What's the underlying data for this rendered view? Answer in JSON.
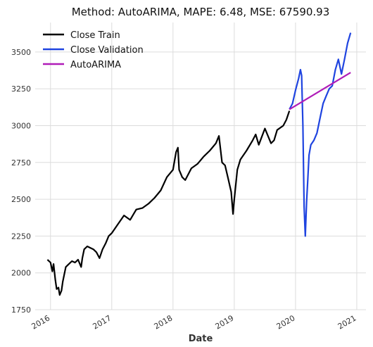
{
  "chart_data": {
    "type": "line",
    "title": "Method: AutoARIMA, MAPE: 6.48, MSE: 67590.93",
    "xlabel": "Date",
    "ylabel": "",
    "xlim": [
      2015.75,
      2021.15
    ],
    "ylim": [
      1750,
      3700
    ],
    "x_ticks": [
      2016,
      2017,
      2018,
      2019,
      2020,
      2021
    ],
    "x_tick_labels": [
      "2016",
      "2017",
      "2018",
      "2019",
      "2020",
      "2021"
    ],
    "y_ticks": [
      1750,
      2000,
      2250,
      2500,
      2750,
      3000,
      3250,
      3500
    ],
    "y_tick_labels": [
      "1750",
      "2000",
      "2250",
      "2500",
      "2750",
      "3000",
      "3250",
      "3500"
    ],
    "grid": true,
    "legend_position": "top-left",
    "series": [
      {
        "name": "Close Train",
        "color": "#000000",
        "x": [
          2015.95,
          2016.0,
          2016.03,
          2016.05,
          2016.08,
          2016.1,
          2016.13,
          2016.15,
          2016.18,
          2016.2,
          2016.25,
          2016.3,
          2016.35,
          2016.4,
          2016.45,
          2016.5,
          2016.52,
          2016.55,
          2016.6,
          2016.65,
          2016.7,
          2016.75,
          2016.8,
          2016.85,
          2016.9,
          2016.95,
          2017.0,
          2017.1,
          2017.2,
          2017.3,
          2017.4,
          2017.5,
          2017.6,
          2017.7,
          2017.8,
          2017.9,
          2018.0,
          2018.05,
          2018.08,
          2018.1,
          2018.15,
          2018.2,
          2018.3,
          2018.4,
          2018.5,
          2018.6,
          2018.7,
          2018.75,
          2018.8,
          2018.85,
          2018.9,
          2018.95,
          2018.98,
          2019.0,
          2019.05,
          2019.1,
          2019.2,
          2019.3,
          2019.35,
          2019.4,
          2019.5,
          2019.6,
          2019.65,
          2019.7,
          2019.8,
          2019.85,
          2019.9
        ],
        "y": [
          2090,
          2070,
          2010,
          2060,
          1950,
          1890,
          1900,
          1850,
          1880,
          1940,
          2040,
          2060,
          2080,
          2070,
          2090,
          2040,
          2100,
          2160,
          2180,
          2170,
          2160,
          2140,
          2100,
          2160,
          2200,
          2250,
          2270,
          2330,
          2390,
          2360,
          2430,
          2440,
          2470,
          2510,
          2560,
          2650,
          2700,
          2820,
          2850,
          2700,
          2650,
          2630,
          2710,
          2740,
          2790,
          2830,
          2880,
          2930,
          2750,
          2730,
          2640,
          2550,
          2400,
          2500,
          2700,
          2770,
          2830,
          2900,
          2940,
          2870,
          2980,
          2880,
          2900,
          2970,
          3000,
          3040,
          3100
        ]
      },
      {
        "name": "Close Validation",
        "color": "#1f44e0",
        "x": [
          2019.9,
          2019.95,
          2020.0,
          2020.05,
          2020.08,
          2020.1,
          2020.12,
          2020.14,
          2020.16,
          2020.18,
          2020.2,
          2020.22,
          2020.25,
          2020.3,
          2020.35,
          2020.4,
          2020.45,
          2020.5,
          2020.55,
          2020.6,
          2020.65,
          2020.7,
          2020.75,
          2020.8,
          2020.85,
          2020.9
        ],
        "y": [
          3110,
          3150,
          3240,
          3320,
          3380,
          3340,
          3000,
          2450,
          2250,
          2480,
          2630,
          2800,
          2870,
          2900,
          2950,
          3050,
          3150,
          3200,
          3250,
          3270,
          3380,
          3450,
          3350,
          3450,
          3560,
          3630
        ]
      },
      {
        "name": "AutoARIMA",
        "color": "#b01cb8",
        "x": [
          2019.9,
          2020.9
        ],
        "y": [
          3110,
          3360
        ]
      }
    ]
  }
}
